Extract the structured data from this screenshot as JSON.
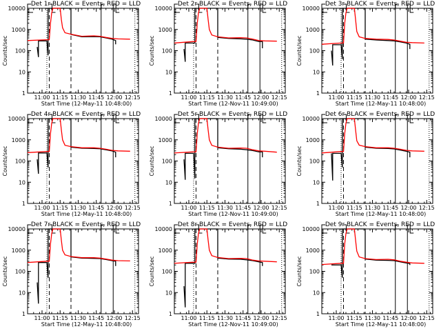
{
  "chart_data": {
    "type": "line",
    "layout": "3x3 grid",
    "shared": {
      "ylabel": "Counts/sec",
      "yscale": "log",
      "ylim": [
        1,
        10000
      ],
      "yticks": [
        1,
        10,
        100,
        1000,
        10000
      ],
      "ytick_labels": [
        "1",
        "10",
        "100",
        "1000",
        "10000"
      ],
      "xlim_minutes_from_start": [
        0,
        92
      ],
      "xtick_labels": [
        "11:00",
        "11:15",
        "11:30",
        "11:45",
        "12:00",
        "12:15"
      ],
      "xtick_minutes": [
        12,
        27,
        42,
        57,
        72,
        87
      ],
      "series_legend": "BLACK = Events, RED = LLD",
      "markers_minutes": {
        "dotted": [
          16,
          89
        ],
        "dashed": [
          18,
          36
        ],
        "solid": [
          61,
          71
        ]
      },
      "colors": {
        "events": "#000000",
        "lld": "#ff0000"
      }
    },
    "panels": [
      {
        "title": "Det 1r BLACK = Events, RED = LLD",
        "xlabel": "Start Time (12-May-11 10:48:00)",
        "lld": [
          [
            0,
            300
          ],
          [
            16,
            330
          ],
          [
            18,
            330
          ],
          [
            19,
            2000
          ],
          [
            20,
            6000
          ],
          [
            21,
            10000
          ],
          [
            27,
            10000
          ],
          [
            28,
            3000
          ],
          [
            29,
            1200
          ],
          [
            31,
            700
          ],
          [
            36,
            600
          ],
          [
            45,
            480
          ],
          [
            55,
            500
          ],
          [
            60,
            480
          ],
          [
            65,
            420
          ],
          [
            70,
            380
          ],
          [
            75,
            360
          ],
          [
            85,
            350
          ]
        ],
        "events": [
          [
            8,
            150
          ],
          [
            9,
            50
          ],
          [
            9,
            290
          ],
          [
            16,
            290
          ],
          [
            17,
            60
          ],
          [
            17,
            10000
          ],
          [
            36,
            10000
          ],
          [
            36,
            580
          ],
          [
            45,
            450
          ],
          [
            55,
            460
          ],
          [
            60,
            450
          ],
          [
            65,
            400
          ],
          [
            70,
            350
          ],
          [
            73,
            300
          ],
          [
            73,
            200
          ]
        ]
      },
      {
        "title": "Det 2r BLACK = Events, RED = LLD",
        "xlabel": "Start Time (12-Nov-11 10:49:00)",
        "lld": [
          [
            0,
            230
          ],
          [
            16,
            270
          ],
          [
            18,
            270
          ],
          [
            19,
            2000
          ],
          [
            20,
            6000
          ],
          [
            21,
            10000
          ],
          [
            27,
            10000
          ],
          [
            28,
            3000
          ],
          [
            29,
            1000
          ],
          [
            31,
            550
          ],
          [
            36,
            450
          ],
          [
            45,
            400
          ],
          [
            55,
            410
          ],
          [
            60,
            400
          ],
          [
            65,
            350
          ],
          [
            70,
            300
          ],
          [
            75,
            290
          ],
          [
            85,
            280
          ]
        ],
        "events": [
          [
            8,
            120
          ],
          [
            9,
            30
          ],
          [
            9,
            230
          ],
          [
            16,
            230
          ],
          [
            17,
            230
          ],
          [
            17,
            10000
          ],
          [
            36,
            10000
          ],
          [
            36,
            420
          ],
          [
            45,
            380
          ],
          [
            55,
            360
          ],
          [
            60,
            350
          ],
          [
            65,
            320
          ],
          [
            70,
            270
          ],
          [
            73,
            270
          ],
          [
            73,
            130
          ]
        ]
      },
      {
        "title": "Det 3r BLACK = Events, RED = LLD",
        "xlabel": "Start Time (12-May-11 10:48:00)",
        "lld": [
          [
            0,
            200
          ],
          [
            16,
            230
          ],
          [
            18,
            230
          ],
          [
            19,
            2000
          ],
          [
            20,
            6000
          ],
          [
            21,
            10000
          ],
          [
            27,
            10000
          ],
          [
            28,
            3000
          ],
          [
            29,
            800
          ],
          [
            31,
            450
          ],
          [
            36,
            380
          ],
          [
            45,
            350
          ],
          [
            55,
            340
          ],
          [
            60,
            320
          ],
          [
            65,
            280
          ],
          [
            70,
            250
          ],
          [
            75,
            240
          ],
          [
            85,
            230
          ]
        ],
        "events": [
          [
            8,
            100
          ],
          [
            9,
            20
          ],
          [
            9,
            190
          ],
          [
            16,
            190
          ],
          [
            17,
            40
          ],
          [
            17,
            10000
          ],
          [
            36,
            10000
          ],
          [
            36,
            350
          ],
          [
            45,
            320
          ],
          [
            55,
            300
          ],
          [
            60,
            290
          ],
          [
            65,
            260
          ],
          [
            70,
            230
          ],
          [
            73,
            200
          ],
          [
            73,
            120
          ]
        ]
      },
      {
        "title": "Det 4r BLACK = Events, RED = LLD",
        "xlabel": "Start Time (12-May-11 10:48:00)",
        "lld": [
          [
            0,
            250
          ],
          [
            16,
            280
          ],
          [
            18,
            280
          ],
          [
            19,
            2000
          ],
          [
            20,
            6000
          ],
          [
            21,
            10000
          ],
          [
            27,
            10000
          ],
          [
            28,
            3000
          ],
          [
            29,
            1000
          ],
          [
            31,
            550
          ],
          [
            36,
            480
          ],
          [
            45,
            420
          ],
          [
            55,
            420
          ],
          [
            60,
            400
          ],
          [
            65,
            360
          ],
          [
            70,
            320
          ],
          [
            75,
            300
          ],
          [
            85,
            290
          ]
        ],
        "events": [
          [
            8,
            120
          ],
          [
            9,
            25
          ],
          [
            9,
            240
          ],
          [
            16,
            240
          ],
          [
            17,
            50
          ],
          [
            17,
            10000
          ],
          [
            36,
            10000
          ],
          [
            36,
            450
          ],
          [
            45,
            400
          ],
          [
            55,
            390
          ],
          [
            60,
            380
          ],
          [
            65,
            340
          ],
          [
            70,
            300
          ],
          [
            73,
            260
          ],
          [
            73,
            150
          ]
        ]
      },
      {
        "title": "Det 5r BLACK = Events, RED = LLD",
        "xlabel": "Start Time (12-Nov-11 10:49:00)",
        "lld": [
          [
            0,
            240
          ],
          [
            16,
            270
          ],
          [
            18,
            270
          ],
          [
            19,
            2000
          ],
          [
            20,
            6000
          ],
          [
            21,
            10000
          ],
          [
            27,
            10000
          ],
          [
            28,
            3000
          ],
          [
            29,
            1000
          ],
          [
            31,
            550
          ],
          [
            36,
            450
          ],
          [
            45,
            400
          ],
          [
            55,
            410
          ],
          [
            60,
            400
          ],
          [
            65,
            340
          ],
          [
            70,
            300
          ],
          [
            75,
            290
          ],
          [
            85,
            260
          ]
        ],
        "events": [
          [
            8,
            120
          ],
          [
            9,
            13
          ],
          [
            9,
            230
          ],
          [
            16,
            230
          ],
          [
            17,
            15
          ],
          [
            17,
            10000
          ],
          [
            36,
            10000
          ],
          [
            36,
            420
          ],
          [
            45,
            380
          ],
          [
            55,
            360
          ],
          [
            60,
            340
          ],
          [
            65,
            310
          ],
          [
            70,
            270
          ],
          [
            73,
            270
          ],
          [
            73,
            150
          ]
        ]
      },
      {
        "title": "Det 6r BLACK = Events, RED = LLD",
        "xlabel": "Start Time (12-May-11 10:48:00)",
        "lld": [
          [
            0,
            240
          ],
          [
            16,
            280
          ],
          [
            18,
            280
          ],
          [
            19,
            2000
          ],
          [
            20,
            6000
          ],
          [
            21,
            10000
          ],
          [
            27,
            10000
          ],
          [
            28,
            3000
          ],
          [
            29,
            900
          ],
          [
            31,
            560
          ],
          [
            36,
            480
          ],
          [
            45,
            420
          ],
          [
            55,
            420
          ],
          [
            60,
            400
          ],
          [
            65,
            360
          ],
          [
            70,
            320
          ],
          [
            75,
            300
          ],
          [
            85,
            290
          ]
        ],
        "events": [
          [
            8,
            230
          ],
          [
            9,
            12
          ],
          [
            9,
            230
          ],
          [
            16,
            230
          ],
          [
            17,
            50
          ],
          [
            17,
            10000
          ],
          [
            36,
            10000
          ],
          [
            36,
            450
          ],
          [
            45,
            400
          ],
          [
            55,
            390
          ],
          [
            60,
            370
          ],
          [
            65,
            330
          ],
          [
            70,
            290
          ],
          [
            73,
            260
          ],
          [
            73,
            150
          ]
        ]
      },
      {
        "title": "Det 7r BLACK = Events, RED = LLD",
        "xlabel": "Start Time (12-May-11 10:48:00)",
        "lld": [
          [
            0,
            260
          ],
          [
            16,
            300
          ],
          [
            18,
            300
          ],
          [
            19,
            2000
          ],
          [
            20,
            6000
          ],
          [
            21,
            10000
          ],
          [
            27,
            10000
          ],
          [
            28,
            3000
          ],
          [
            29,
            1000
          ],
          [
            31,
            600
          ],
          [
            36,
            500
          ],
          [
            45,
            440
          ],
          [
            55,
            440
          ],
          [
            60,
            420
          ],
          [
            65,
            380
          ],
          [
            70,
            340
          ],
          [
            75,
            320
          ],
          [
            85,
            310
          ]
        ],
        "events": [
          [
            8,
            30
          ],
          [
            9,
            3
          ],
          [
            9,
            260
          ],
          [
            16,
            260
          ],
          [
            17,
            50
          ],
          [
            17,
            10000
          ],
          [
            36,
            10000
          ],
          [
            36,
            480
          ],
          [
            45,
            420
          ],
          [
            55,
            410
          ],
          [
            60,
            400
          ],
          [
            65,
            360
          ],
          [
            70,
            320
          ],
          [
            73,
            300
          ],
          [
            73,
            180
          ]
        ]
      },
      {
        "title": "Det 8r BLACK = Events, RED = LLD",
        "xlabel": "Start Time (12-Nov-11 10:49:00)",
        "lld": [
          [
            0,
            240
          ],
          [
            16,
            270
          ],
          [
            18,
            270
          ],
          [
            19,
            2000
          ],
          [
            20,
            6000
          ],
          [
            21,
            10000
          ],
          [
            27,
            10000
          ],
          [
            28,
            3000
          ],
          [
            29,
            1000
          ],
          [
            31,
            550
          ],
          [
            36,
            450
          ],
          [
            45,
            400
          ],
          [
            55,
            410
          ],
          [
            60,
            400
          ],
          [
            65,
            340
          ],
          [
            70,
            310
          ],
          [
            75,
            300
          ],
          [
            85,
            280
          ]
        ],
        "events": [
          [
            8,
            20
          ],
          [
            9,
            2
          ],
          [
            9,
            240
          ],
          [
            16,
            240
          ],
          [
            17,
            240
          ],
          [
            17,
            10000
          ],
          [
            36,
            10000
          ],
          [
            36,
            420
          ],
          [
            45,
            380
          ],
          [
            55,
            370
          ],
          [
            60,
            350
          ],
          [
            65,
            320
          ],
          [
            70,
            280
          ],
          [
            73,
            260
          ],
          [
            73,
            180
          ]
        ]
      },
      {
        "title": "Det 9r BLACK = Events, RED = LLD",
        "xlabel": "Start Time (12-May-11 10:48:00)",
        "lld": [
          [
            0,
            210
          ],
          [
            16,
            240
          ],
          [
            18,
            240
          ],
          [
            19,
            2000
          ],
          [
            20,
            6000
          ],
          [
            21,
            10000
          ],
          [
            27,
            10000
          ],
          [
            28,
            3000
          ],
          [
            29,
            900
          ],
          [
            31,
            480
          ],
          [
            36,
            400
          ],
          [
            45,
            360
          ],
          [
            55,
            370
          ],
          [
            60,
            350
          ],
          [
            65,
            300
          ],
          [
            70,
            270
          ],
          [
            75,
            250
          ],
          [
            85,
            240
          ]
        ],
        "events": [
          [
            8,
            200
          ],
          [
            16,
            200
          ],
          [
            17,
            50
          ],
          [
            17,
            10000
          ],
          [
            36,
            10000
          ],
          [
            36,
            380
          ],
          [
            45,
            340
          ],
          [
            55,
            330
          ],
          [
            60,
            320
          ],
          [
            65,
            280
          ],
          [
            70,
            250
          ],
          [
            73,
            230
          ],
          [
            73,
            200
          ]
        ]
      }
    ]
  }
}
